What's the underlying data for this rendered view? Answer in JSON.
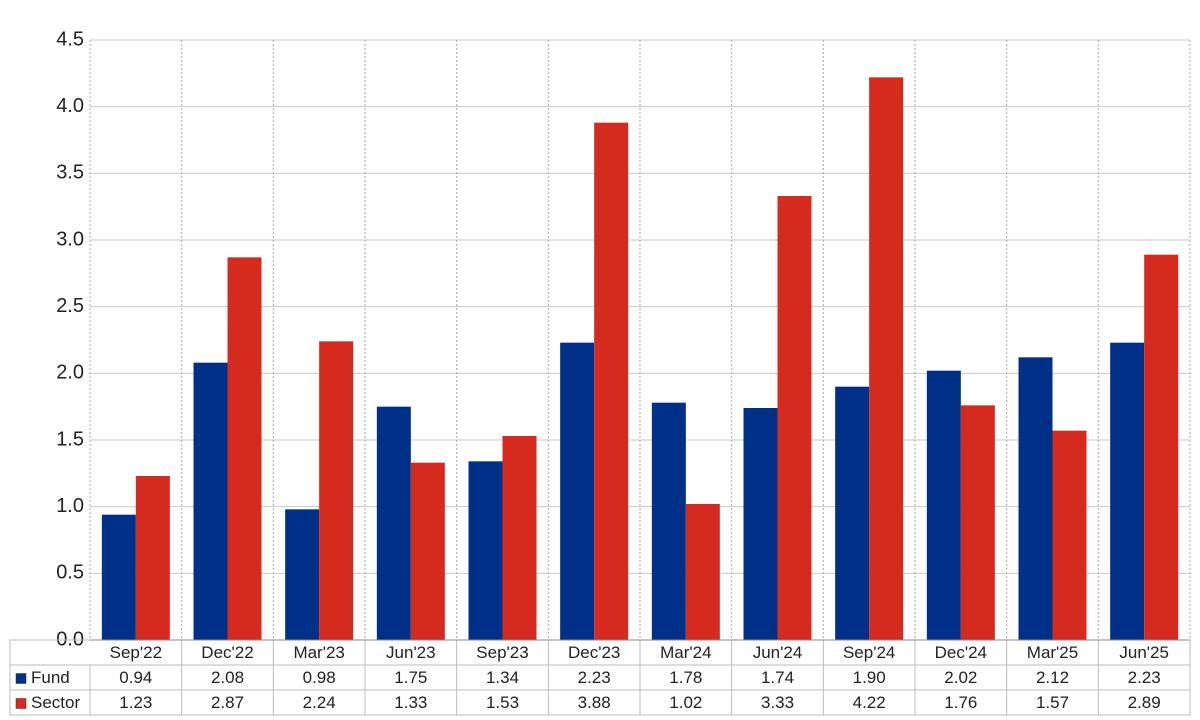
{
  "chart_data": {
    "type": "bar",
    "categories": [
      "Sep'22",
      "Dec'22",
      "Mar'23",
      "Jun'23",
      "Sep'23",
      "Dec'23",
      "Mar'24",
      "Jun'24",
      "Sep'24",
      "Dec'24",
      "Mar'25",
      "Jun'25"
    ],
    "series": [
      {
        "name": "Fund",
        "color": "#003087",
        "values": [
          0.94,
          2.08,
          0.98,
          1.75,
          1.34,
          2.23,
          1.78,
          1.74,
          1.9,
          2.02,
          2.12,
          2.23
        ],
        "value_labels": [
          "0.94",
          "2.08",
          "0.98",
          "1.75",
          "1.34",
          "2.23",
          "1.78",
          "1.74",
          "1.90",
          "2.02",
          "2.12",
          "2.23"
        ]
      },
      {
        "name": "Sector",
        "color": "#d52b1e",
        "values": [
          1.23,
          2.87,
          2.24,
          1.33,
          1.53,
          3.88,
          1.02,
          3.33,
          4.22,
          1.76,
          1.57,
          2.89
        ],
        "value_labels": [
          "1.23",
          "2.87",
          "2.24",
          "1.33",
          "1.53",
          "3.88",
          "1.02",
          "3.33",
          "4.22",
          "1.76",
          "1.57",
          "2.89"
        ]
      }
    ],
    "ylim": [
      0,
      4.5
    ],
    "yticks": [
      {
        "value": 0,
        "label": "0.0"
      },
      0.5,
      {
        "value": 1,
        "label": "1.0"
      },
      1.5,
      {
        "value": 2,
        "label": "2.0"
      },
      2.5,
      {
        "value": 3,
        "label": "3.0"
      },
      3.5,
      {
        "value": 4,
        "label": "4.0"
      },
      4.5
    ],
    "grid": true
  }
}
